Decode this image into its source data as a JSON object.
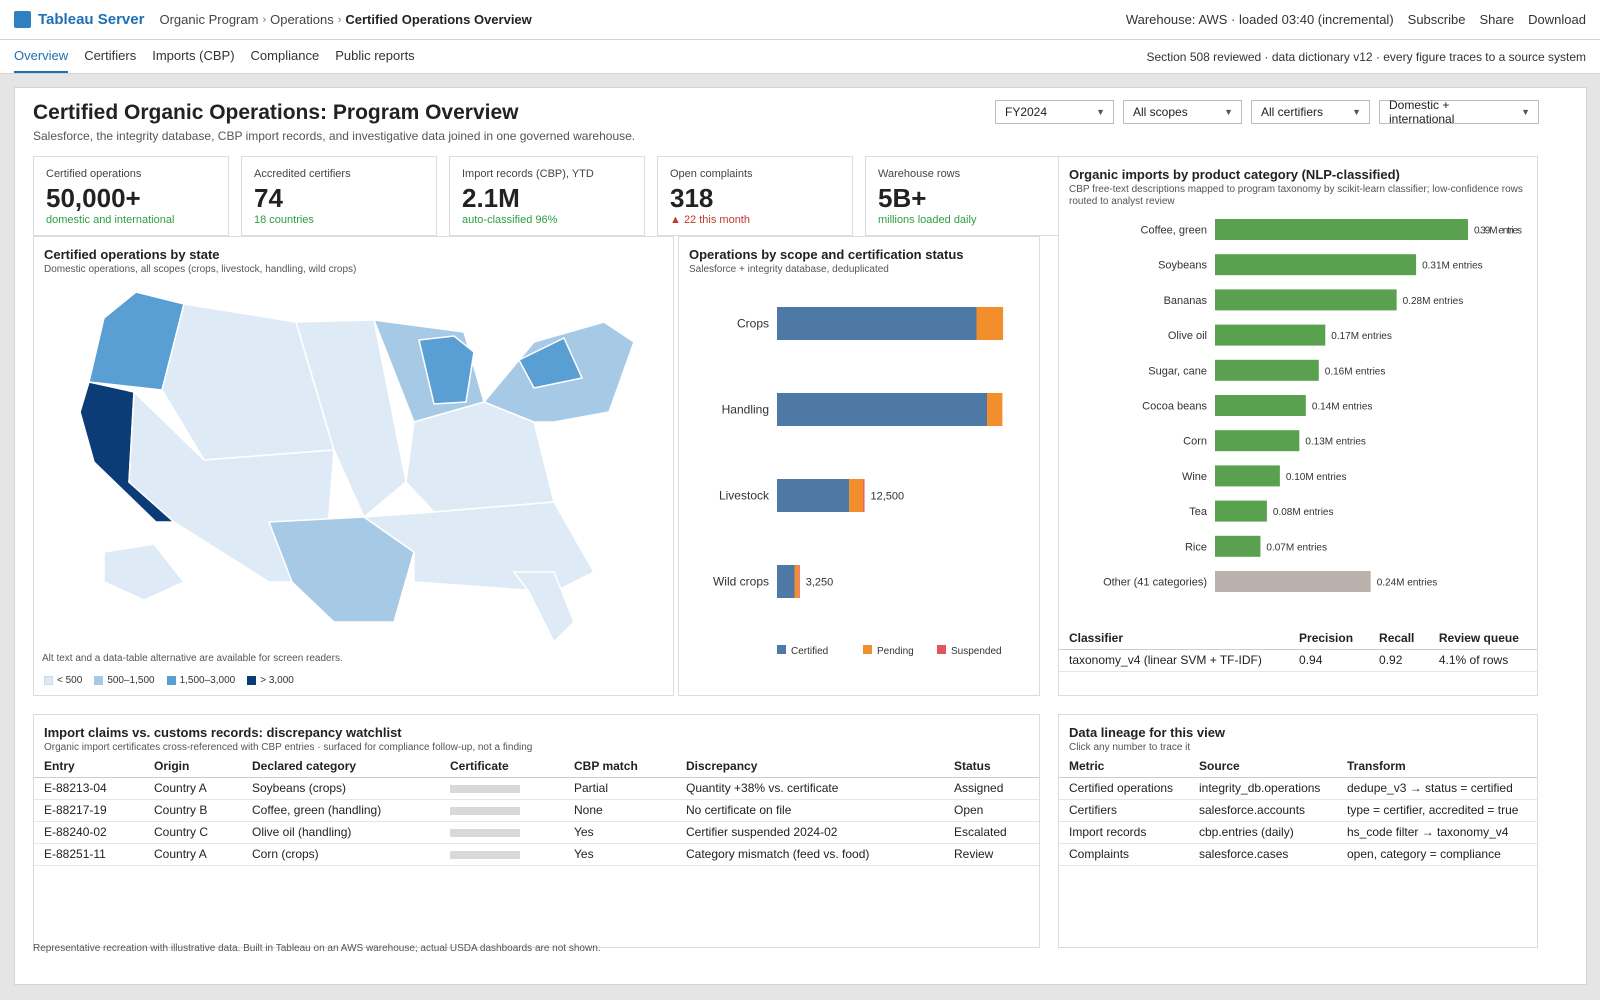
{
  "app": {
    "brand": "Tableau Server",
    "breadcrumb": [
      "Organic Program",
      "Operations",
      "Certified Operations Overview"
    ],
    "status": "Warehouse: AWS · loaded 03:40 (incremental)",
    "actions": [
      "Subscribe",
      "Share",
      "Download"
    ]
  },
  "tabs": [
    "Overview",
    "Certifiers",
    "Imports (CBP)",
    "Compliance",
    "Public reports"
  ],
  "tab_note": "Section 508 reviewed · data dictionary v12 · every figure traces to a source system",
  "page": {
    "title": "Certified Organic Operations: Program Overview",
    "subtitle": "Salesforce, the integrity database, CBP import records, and investigative data joined in one governed warehouse."
  },
  "filters": [
    "FY2024",
    "All scopes",
    "All certifiers",
    "Domestic + international"
  ],
  "kpis": [
    {
      "label": "Certified operations",
      "value": "50,000+",
      "note": "domestic and international",
      "tone": "green"
    },
    {
      "label": "Accredited certifiers",
      "value": "74",
      "note": "18 countries",
      "tone": "green"
    },
    {
      "label": "Import records (CBP), YTD",
      "value": "2.1M",
      "note": "auto-classified 96%",
      "tone": "green"
    },
    {
      "label": "Open complaints",
      "value": "318",
      "note": "▲ 22 this month",
      "tone": "red"
    },
    {
      "label": "Warehouse rows",
      "value": "5B+",
      "note": "millions loaded daily",
      "tone": "green"
    }
  ],
  "map": {
    "title": "Certified operations by state",
    "subtitle": "Domestic operations, all scopes (crops, livestock, handling, wild crops)",
    "accessibility_note": "Alt text and a data-table alternative are available for screen readers.",
    "legend": [
      {
        "label": "< 500",
        "color": "#deebf7"
      },
      {
        "label": "500–1,500",
        "color": "#a6c9e6"
      },
      {
        "label": "1,500–3,000",
        "color": "#5a9fd4"
      },
      {
        "label": "> 3,000",
        "color": "#0b3c78"
      }
    ]
  },
  "chart_data": [
    {
      "type": "bar",
      "orientation": "horizontal",
      "stacked": true,
      "title": "Operations by scope and certification status",
      "subtitle": "Salesforce + integrity database, deduplicated",
      "categories": [
        "Crops",
        "Handling",
        "Livestock",
        "Wild crops"
      ],
      "series": [
        {
          "name": "Certified",
          "color": "#4e79a7",
          "values": [
            28500,
            30000,
            10300,
            2500
          ]
        },
        {
          "name": "Pending",
          "color": "#f28e2b",
          "values": [
            3800,
            2200,
            2000,
            600
          ]
        },
        {
          "name": "Suspended",
          "color": "#e15759",
          "values": [
            0,
            0,
            200,
            150
          ]
        }
      ],
      "data_labels": [
        "",
        "",
        "12,500",
        "3,250"
      ],
      "legend_position": "bottom",
      "grid": false
    },
    {
      "type": "bar",
      "orientation": "horizontal",
      "title": "Organic imports by product category (NLP-classified)",
      "subtitle": "CBP free-text descriptions mapped to program taxonomy by scikit-learn classifier; low-confidence rows routed to analyst review",
      "categories": [
        "Coffee, green",
        "Soybeans",
        "Bananas",
        "Olive oil",
        "Sugar, cane",
        "Cocoa beans",
        "Corn",
        "Wine",
        "Tea",
        "Rice",
        "Other (41 categories)"
      ],
      "values": [
        0.39,
        0.31,
        0.28,
        0.17,
        0.16,
        0.14,
        0.13,
        0.1,
        0.08,
        0.07,
        0.24
      ],
      "unit": "M entries",
      "data_labels": [
        "0.39M entries",
        "0.31M entries",
        "0.28M entries",
        "0.17M entries",
        "0.16M entries",
        "0.14M entries",
        "0.13M entries",
        "0.10M entries",
        "0.08M entries",
        "0.07M entries",
        "0.24M entries"
      ],
      "colors": {
        "default": "#59a14f",
        "other": "#bab0ac"
      },
      "grid": false
    }
  ],
  "classifier": {
    "headers": [
      "Classifier",
      "Precision",
      "Recall",
      "Review queue"
    ],
    "rows": [
      [
        "taxonomy_v4 (linear SVM + TF-IDF)",
        "0.94",
        "0.92",
        "4.1% of rows"
      ]
    ]
  },
  "watchlist": {
    "title": "Import claims vs. customs records: discrepancy watchlist",
    "subtitle": "Organic import certificates cross-referenced with CBP entries · surfaced for compliance follow-up, not a finding",
    "headers": [
      "Entry",
      "Origin",
      "Declared category",
      "Certificate",
      "CBP match",
      "Discrepancy",
      "Status"
    ],
    "rows": [
      [
        "E-88213-04",
        "Country A",
        "Soybeans (crops)",
        "",
        "Partial",
        "Quantity +38% vs. certificate",
        "Assigned"
      ],
      [
        "E-88217-19",
        "Country B",
        "Coffee, green (handling)",
        "",
        "None",
        "No certificate on file",
        "Open"
      ],
      [
        "E-88240-02",
        "Country C",
        "Olive oil (handling)",
        "",
        "Yes",
        "Certifier suspended 2024-02",
        "Escalated"
      ],
      [
        "E-88251-11",
        "Country A",
        "Corn (crops)",
        "",
        "Yes",
        "Category mismatch (feed vs. food)",
        "Review"
      ]
    ]
  },
  "lineage": {
    "title": "Data lineage for this view",
    "subtitle": "Click any number to trace it",
    "headers": [
      "Metric",
      "Source",
      "Transform"
    ],
    "rows": [
      [
        "Certified operations",
        "integrity_db.operations",
        "dedupe_v3 → status = certified"
      ],
      [
        "Certifiers",
        "salesforce.accounts",
        "type = certifier, accredited = true"
      ],
      [
        "Import records",
        "cbp.entries (daily)",
        "hs_code filter → taxonomy_v4"
      ],
      [
        "Complaints",
        "salesforce.cases",
        "open, category = compliance"
      ]
    ]
  },
  "footnote": "Representative recreation with illustrative data. Built in Tableau on an AWS warehouse; actual USDA dashboards are not shown."
}
